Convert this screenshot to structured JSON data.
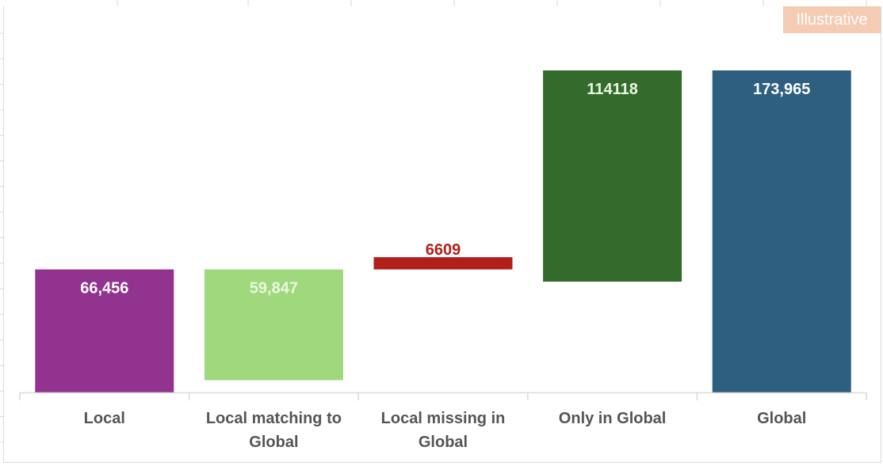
{
  "badge": "Illustrative",
  "chart_data": {
    "type": "bar",
    "subtype": "waterfall",
    "categories": [
      "Local",
      "Local matching to Global",
      "Local missing in Global",
      "Only in Global",
      "Global"
    ],
    "bars": [
      {
        "category": "Local",
        "start": 0,
        "end": 66456,
        "label": "66,456",
        "color": "#92338f",
        "label_color": "#ffffff"
      },
      {
        "category": "Local matching to Global",
        "start": 6609,
        "end": 66456,
        "label": "59,847",
        "color": "#a0d97d",
        "label_color": "#eaf6e0"
      },
      {
        "category": "Local missing in Global",
        "start": 66456,
        "end": 73065,
        "label": "6609",
        "color": "#b21f1a",
        "label_color": "#b21f1a"
      },
      {
        "category": "Only in Global",
        "start": 59847,
        "end": 173965,
        "label": "114118",
        "color": "#336b2c",
        "label_color": "#eaf6e0"
      },
      {
        "category": "Global",
        "start": 0,
        "end": 173965,
        "label": "173,965",
        "color": "#2e5f80",
        "label_color": "#ffffff"
      }
    ],
    "category_labels": [
      [
        "Local"
      ],
      [
        "Local matching to",
        "Global"
      ],
      [
        "Local missing in",
        "Global"
      ],
      [
        "Only in Global"
      ],
      [
        "Global"
      ]
    ],
    "ylim": [
      0,
      173965
    ],
    "grid": false,
    "legend": "none"
  }
}
